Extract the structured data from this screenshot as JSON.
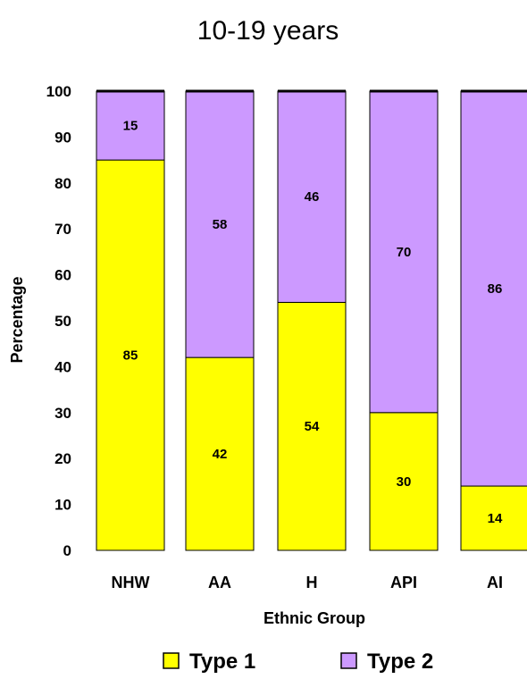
{
  "chart_data": {
    "type": "bar",
    "stacked": true,
    "title": "10-19 years",
    "xlabel": "Ethnic Group",
    "ylabel": "Percentage",
    "ylim": [
      0,
      100
    ],
    "yticks": [
      "0",
      "10",
      "20",
      "30",
      "40",
      "50",
      "60",
      "70",
      "80",
      "90",
      "100"
    ],
    "categories": [
      "NHW",
      "AA",
      "H",
      "API",
      "AI"
    ],
    "series": [
      {
        "name": "Type 1",
        "color": "#ffff00",
        "values": [
          85,
          42,
          54,
          30,
          14
        ],
        "labels": [
          "85",
          "42",
          "54",
          "30",
          "14"
        ]
      },
      {
        "name": "Type 2",
        "color": "#cc99ff",
        "values": [
          15,
          58,
          46,
          70,
          86
        ],
        "labels": [
          "15",
          "58",
          "46",
          "70",
          "86"
        ]
      }
    ],
    "legend_position": "bottom",
    "grid": false
  }
}
